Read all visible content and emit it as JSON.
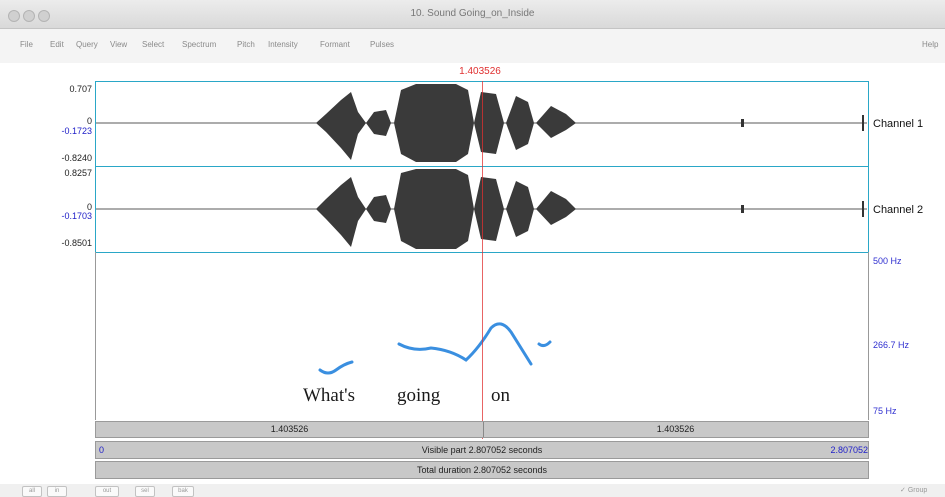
{
  "window": {
    "title": "10. Sound Going_on_Inside"
  },
  "menu": {
    "items": [
      "File",
      "Edit",
      "Query",
      "View",
      "Select",
      "Spectrum",
      "Pitch",
      "Intensity",
      "Formant",
      "Pulses"
    ],
    "help": "Help"
  },
  "cursor": {
    "time": "1.403526"
  },
  "channel1": {
    "label": "Channel 1",
    "ytop": "0.707",
    "ymid": "-0.1723",
    "yzero": "0",
    "ybot": "-0.8240"
  },
  "channel2": {
    "label": "Channel 2",
    "ytop": "0.8257",
    "ymid": "-0.1703",
    "yzero": "0",
    "ybot": "-0.8501"
  },
  "pitch": {
    "top": "500 Hz",
    "mid": "266.7 Hz",
    "bot": "75 Hz"
  },
  "transcript": {
    "words": [
      "What's",
      "going",
      "on"
    ]
  },
  "selection": {
    "left_label": "1.403526",
    "right_label": "1.403526"
  },
  "visible": {
    "start": "0",
    "text": "Visible part 2.807052 seconds",
    "end": "2.807052"
  },
  "total": {
    "text": "Total duration 2.807052 seconds"
  },
  "bottom": {
    "buttons": [
      "all",
      "in",
      "out",
      "sel",
      "bak"
    ],
    "group": "Group"
  },
  "colors": {
    "accent": "#2aa7c7",
    "cursor": "#e03030",
    "pitch": "#3a8fe0",
    "blueLabel": "#2020c8"
  }
}
